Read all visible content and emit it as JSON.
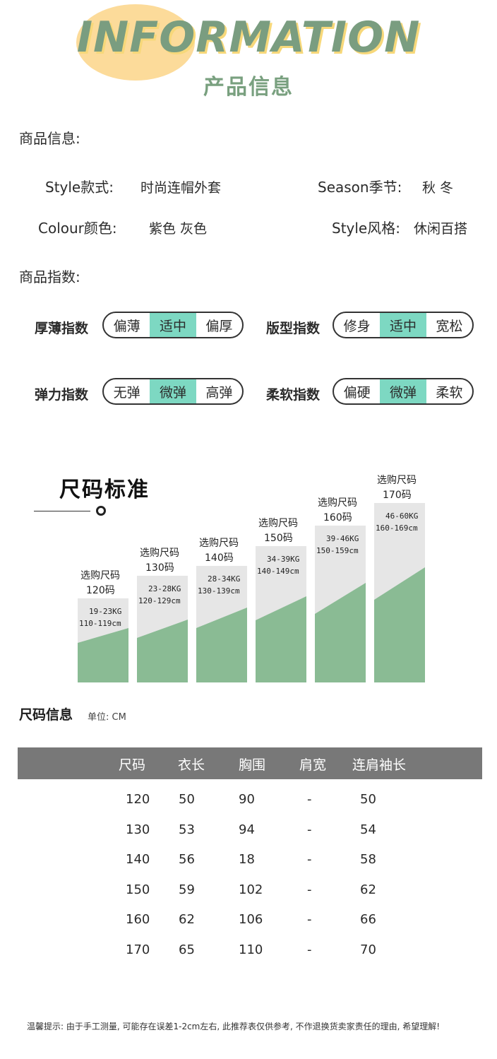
{
  "header": {
    "title_en": "INFORMATION",
    "title_cn": "产品信息"
  },
  "product_info": {
    "section_label": "商品信息:",
    "style_label": "Style款式:",
    "style_value": "时尚连帽外套",
    "season_label": "Season季节:",
    "season_value": "秋 冬",
    "colour_label": "Colour颜色:",
    "colour_value": "紫色 灰色",
    "style2_label": "Style风格:",
    "style2_value": "休闲百搭"
  },
  "indices": {
    "section_label": "商品指数:",
    "items": [
      {
        "label": "厚薄指数",
        "options": [
          "偏薄",
          "适中",
          "偏厚"
        ],
        "selected": 1
      },
      {
        "label": "版型指数",
        "options": [
          "修身",
          "适中",
          "宽松"
        ],
        "selected": 1
      },
      {
        "label": "弹力指数",
        "options": [
          "无弹",
          "微弹",
          "高弹"
        ],
        "selected": 1
      },
      {
        "label": "柔软指数",
        "options": [
          "偏硬",
          "微弹",
          "柔软"
        ],
        "selected": 1
      }
    ],
    "highlight_color": "#7dd8c2"
  },
  "size_chart": {
    "title": "尺码标准",
    "bars": [
      {
        "caption": "选购尺码",
        "size": "120码",
        "weight": "19-23KG",
        "height": "110-119cm"
      },
      {
        "caption": "选购尺码",
        "size": "130码",
        "weight": "23-28KG",
        "height": "120-129cm"
      },
      {
        "caption": "选购尺码",
        "size": "140码",
        "weight": "28-34KG",
        "height": "130-139cm"
      },
      {
        "caption": "选购尺码",
        "size": "150码",
        "weight": "34-39KG",
        "height": "140-149cm"
      },
      {
        "caption": "选购尺码",
        "size": "160码",
        "weight": "39-46KG",
        "height": "150-159cm"
      },
      {
        "caption": "选购尺码",
        "size": "170码",
        "weight": "46-60KG",
        "height": "160-169cm"
      }
    ],
    "bar_color_gray": "#e6e6e6",
    "bar_color_green": "#8abb94"
  },
  "size_table": {
    "title": "尺码信息",
    "unit": "单位: CM",
    "headers": [
      "尺码",
      "衣长",
      "胸围",
      "肩宽",
      "连肩袖长"
    ],
    "rows": [
      [
        "120",
        "50",
        "90",
        "-",
        "50"
      ],
      [
        "130",
        "53",
        "94",
        "-",
        "54"
      ],
      [
        "140",
        "56",
        "18",
        "-",
        "58"
      ],
      [
        "150",
        "59",
        "102",
        "-",
        "62"
      ],
      [
        "160",
        "62",
        "106",
        "-",
        "66"
      ],
      [
        "170",
        "65",
        "110",
        "-",
        "70"
      ]
    ],
    "header_color": "#787878"
  },
  "footer": {
    "note": "温馨提示: 由于手工测量, 可能存在误差1-2cm左右, 此推荐表仅供参考, 不作退换货卖家责任的理由, 希望理解!"
  }
}
